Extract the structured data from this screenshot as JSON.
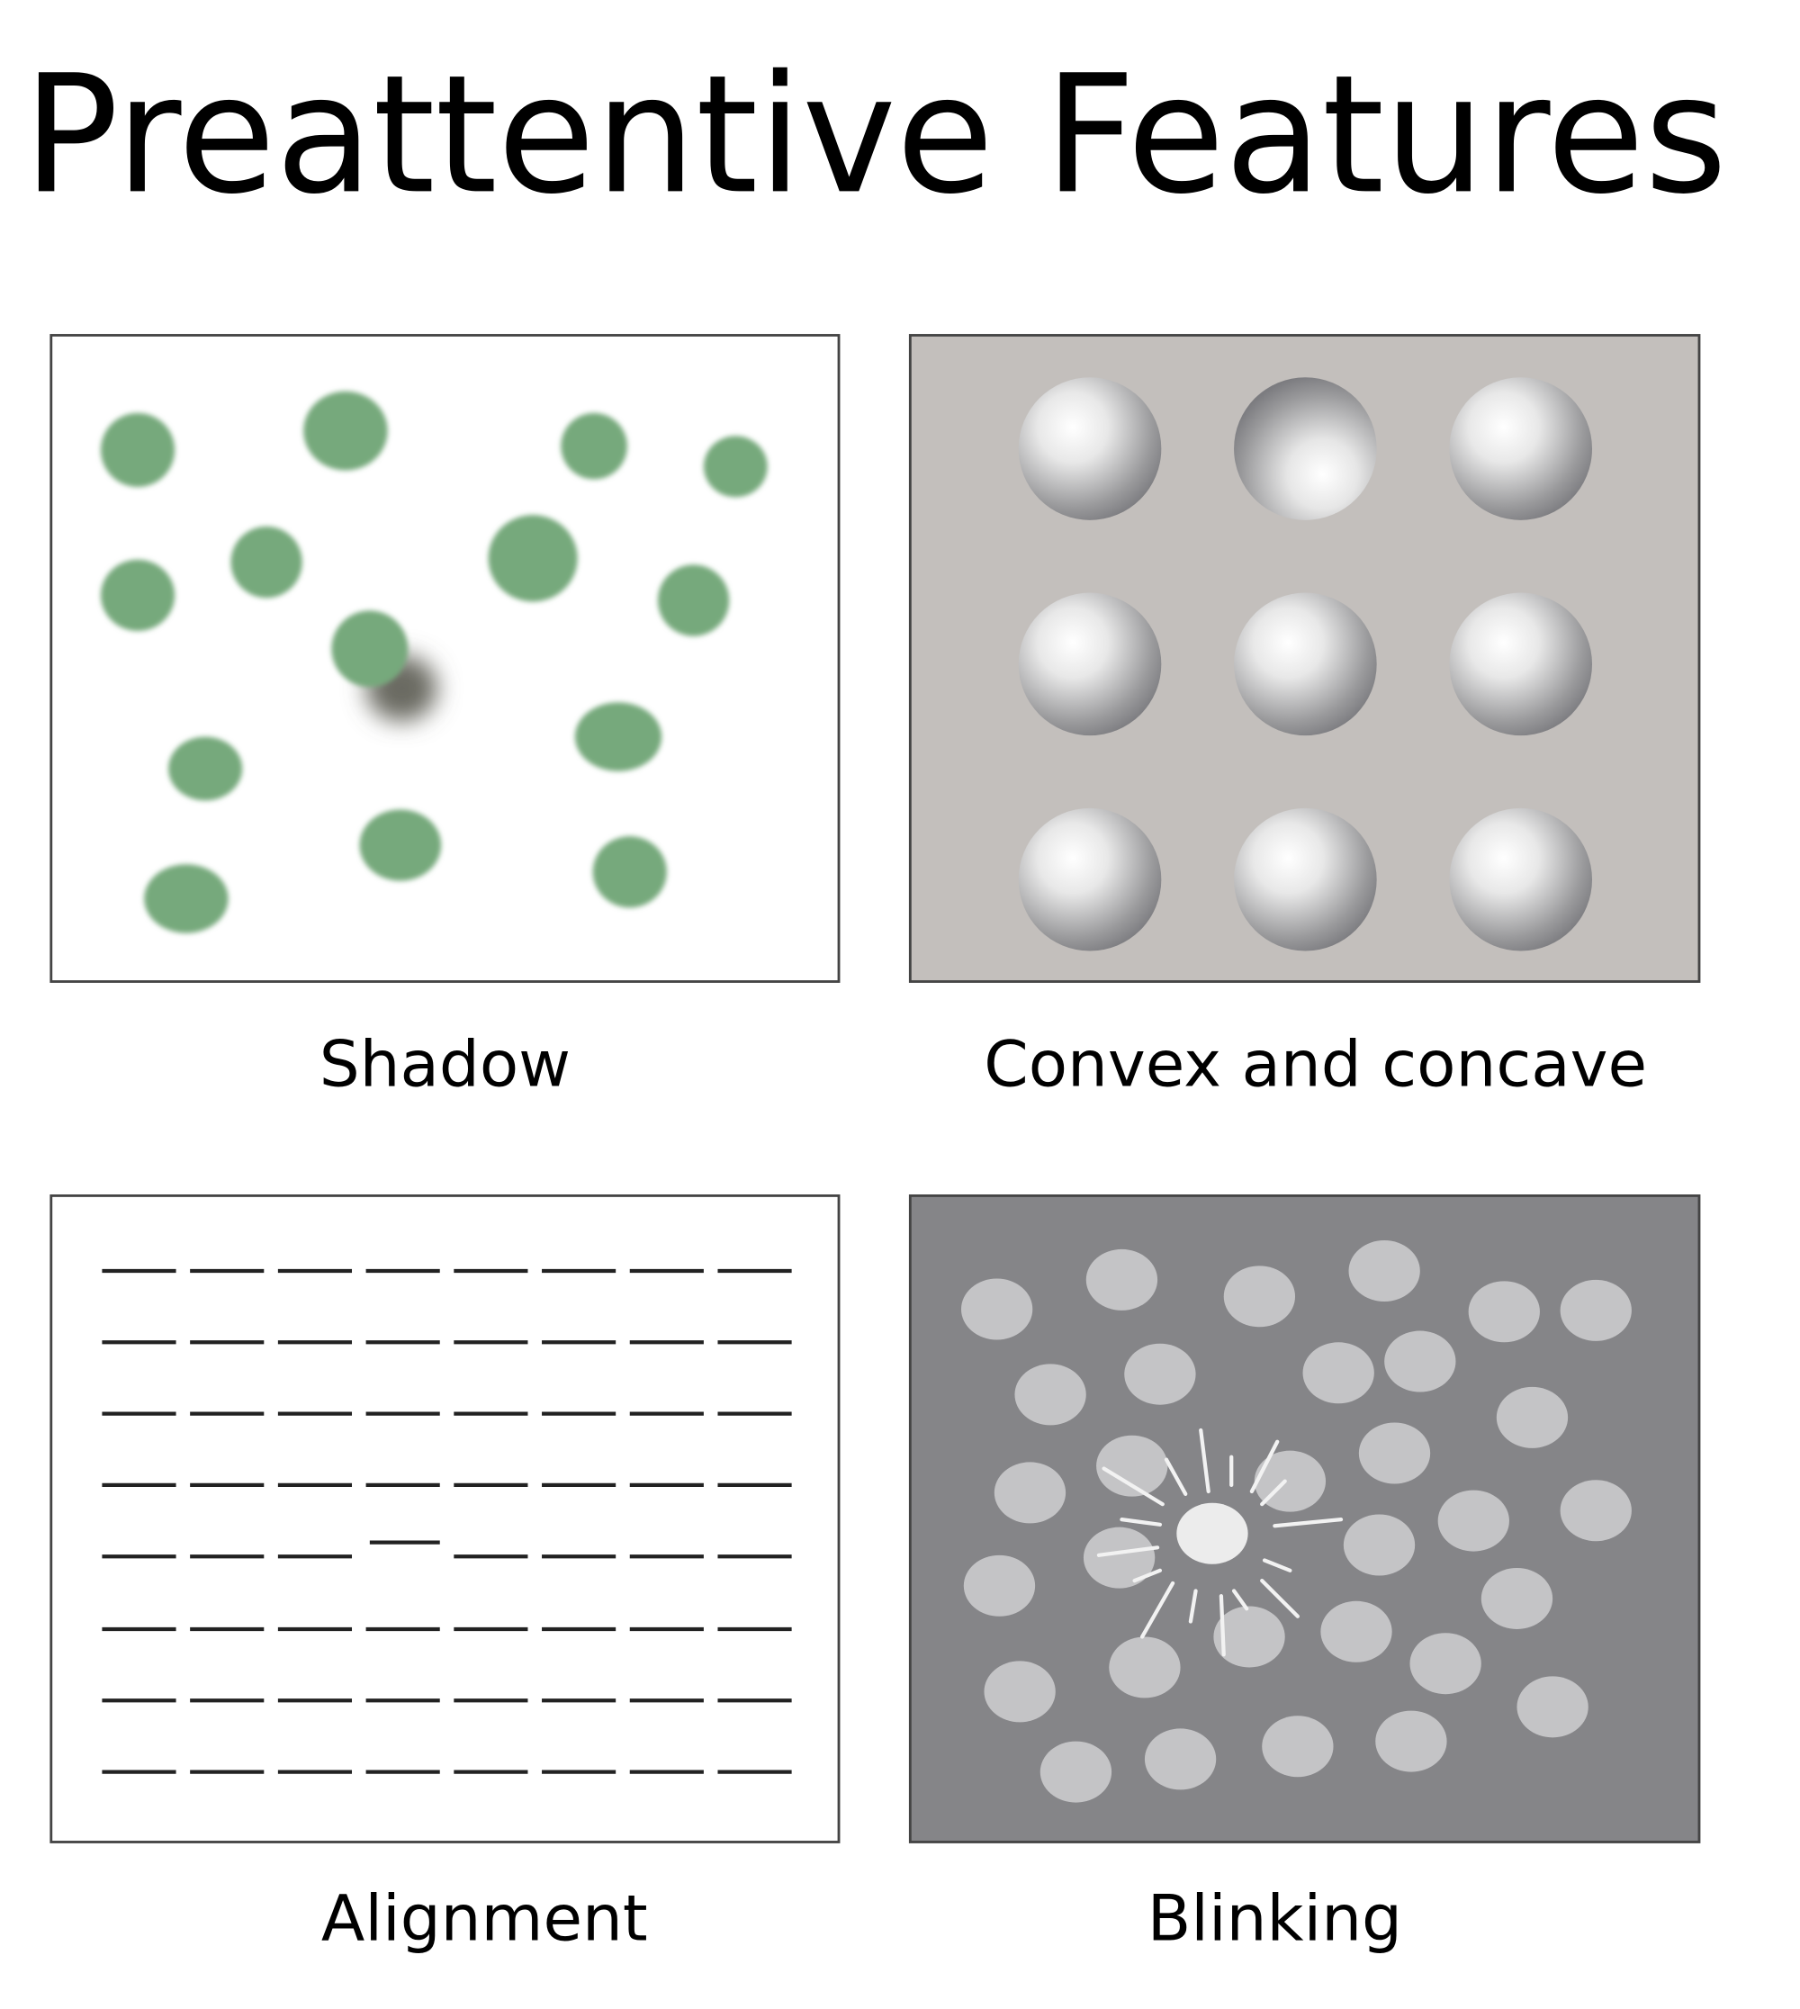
{
  "title": "Preattentive Features",
  "panels": [
    {
      "caption": "Shadow"
    },
    {
      "caption": "Convex and concave"
    },
    {
      "caption": "Alignment"
    },
    {
      "caption": "Blinking"
    }
  ]
}
